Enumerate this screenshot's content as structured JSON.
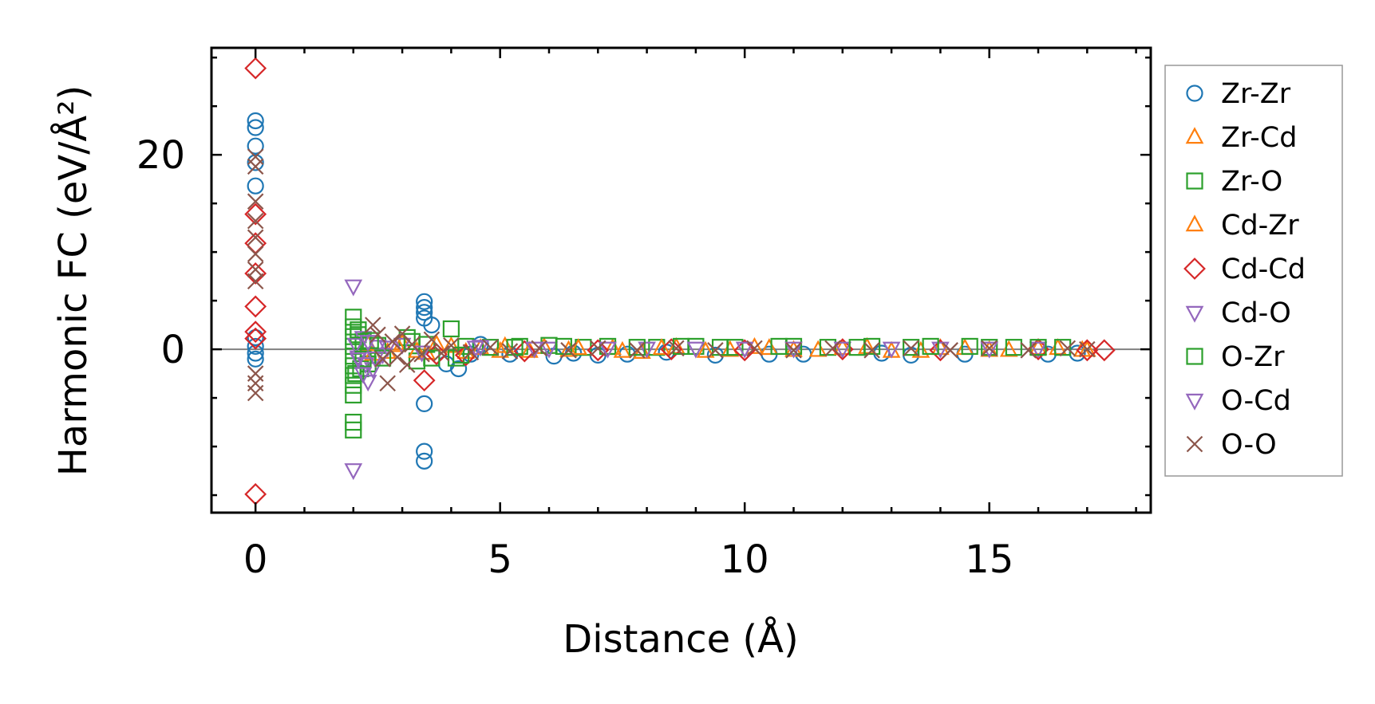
{
  "chart_data": {
    "type": "scatter",
    "title": "",
    "xlabel": "Distance (Å)",
    "ylabel": "Harmonic FC (eV/Å²)",
    "xlim": [
      -0.9,
      18.3
    ],
    "ylim": [
      -16.8,
      31
    ],
    "xticks": [
      0,
      5,
      10,
      15
    ],
    "yticks": [
      0,
      20
    ],
    "legend_position": "outside-right",
    "grid": false,
    "zero_line": true,
    "series": [
      {
        "name": "Zr-Zr",
        "marker": "circle",
        "color": "#1f77b4",
        "points": [
          [
            0,
            23.5
          ],
          [
            0,
            22.8
          ],
          [
            0,
            20.9
          ],
          [
            0,
            19.2
          ],
          [
            0,
            16.8
          ],
          [
            0,
            1.2
          ],
          [
            0,
            0.3
          ],
          [
            0,
            -0.4
          ],
          [
            0,
            -1.0
          ],
          [
            3.45,
            4.9
          ],
          [
            3.45,
            4.3
          ],
          [
            3.45,
            3.8
          ],
          [
            3.45,
            3.2
          ],
          [
            3.45,
            -5.6
          ],
          [
            3.45,
            -10.5
          ],
          [
            3.45,
            -11.5
          ],
          [
            3.6,
            2.5
          ],
          [
            3.9,
            -1.5
          ],
          [
            4.15,
            -2.0
          ],
          [
            4.4,
            -0.5
          ],
          [
            4.6,
            0.5
          ],
          [
            5.2,
            -0.5
          ],
          [
            6.1,
            -0.7
          ],
          [
            6.5,
            -0.4
          ],
          [
            7.0,
            -0.6
          ],
          [
            7.6,
            -0.5
          ],
          [
            8.4,
            -0.3
          ],
          [
            9.4,
            -0.6
          ],
          [
            10.5,
            -0.5
          ],
          [
            11.2,
            -0.5
          ],
          [
            12.8,
            -0.4
          ],
          [
            13.4,
            -0.6
          ],
          [
            14.5,
            -0.5
          ],
          [
            16.2,
            -0.5
          ],
          [
            16.8,
            -0.4
          ]
        ]
      },
      {
        "name": "Zr-Cd",
        "marker": "triangle-up",
        "color": "#ff7f0e",
        "points": [
          [
            2.3,
            0.5
          ],
          [
            2.7,
            -0.3
          ],
          [
            3.0,
            0.6
          ],
          [
            3.5,
            -0.4
          ],
          [
            4.0,
            0.3
          ],
          [
            4.6,
            0.1
          ],
          [
            5.0,
            -0.2
          ],
          [
            5.9,
            0.2
          ],
          [
            6.4,
            -0.1
          ],
          [
            7.3,
            0.1
          ],
          [
            7.9,
            -0.3
          ],
          [
            8.6,
            0.2
          ],
          [
            9.7,
            -0.1
          ],
          [
            10.5,
            0.1
          ],
          [
            11.5,
            -0.1
          ],
          [
            12.5,
            0.2
          ],
          [
            13.6,
            -0.2
          ],
          [
            14.5,
            0.1
          ],
          [
            15.4,
            -0.1
          ],
          [
            16.4,
            0.1
          ],
          [
            17.0,
            -0.1
          ]
        ]
      },
      {
        "name": "Zr-O",
        "marker": "square",
        "color": "#2ca02c",
        "points": [
          [
            2.0,
            3.3
          ],
          [
            2.0,
            2.3
          ],
          [
            2.0,
            1.3
          ],
          [
            2.0,
            0.3
          ],
          [
            2.0,
            -0.7
          ],
          [
            2.0,
            -1.7
          ],
          [
            2.0,
            -2.7
          ],
          [
            2.0,
            -3.7
          ],
          [
            2.0,
            -4.7
          ],
          [
            2.0,
            -7.5
          ],
          [
            2.0,
            -8.3
          ],
          [
            2.1,
            1.5
          ],
          [
            2.15,
            -2.0
          ],
          [
            2.2,
            0.8
          ],
          [
            2.3,
            -1.5
          ],
          [
            2.5,
            0.4
          ],
          [
            3.1,
            1.2
          ],
          [
            3.3,
            -1.2
          ],
          [
            3.5,
            0.5
          ],
          [
            4.0,
            2.1
          ],
          [
            4.1,
            -0.9
          ],
          [
            4.3,
            0.3
          ],
          [
            4.8,
            0.2
          ],
          [
            5.4,
            0.3
          ],
          [
            6.0,
            0.4
          ],
          [
            6.7,
            0.2
          ],
          [
            7.2,
            0.3
          ],
          [
            8.2,
            0.2
          ],
          [
            9.0,
            0.3
          ],
          [
            9.8,
            0.2
          ],
          [
            10.7,
            0.3
          ],
          [
            11.7,
            0.2
          ],
          [
            12.6,
            0.3
          ],
          [
            13.4,
            0.2
          ],
          [
            14.6,
            0.3
          ],
          [
            15.5,
            0.2
          ],
          [
            16.5,
            0.2
          ]
        ]
      },
      {
        "name": "Cd-Zr",
        "marker": "triangle-up",
        "color": "#ff7f0e",
        "points": [
          [
            2.4,
            -0.5
          ],
          [
            2.9,
            0.4
          ],
          [
            3.3,
            -0.2
          ],
          [
            3.7,
            0.5
          ],
          [
            4.3,
            -0.3
          ],
          [
            5.1,
            0.3
          ],
          [
            5.6,
            -0.2
          ],
          [
            6.6,
            0.1
          ],
          [
            7.5,
            -0.2
          ],
          [
            8.3,
            0.1
          ],
          [
            9.2,
            -0.2
          ],
          [
            10.2,
            0.2
          ],
          [
            11.0,
            -0.1
          ],
          [
            12.0,
            0.1
          ],
          [
            13.0,
            -0.2
          ],
          [
            14.0,
            0.1
          ],
          [
            15.0,
            -0.1
          ],
          [
            16.0,
            0.1
          ],
          [
            16.9,
            -0.1
          ]
        ]
      },
      {
        "name": "Cd-Cd",
        "marker": "diamond",
        "color": "#d62728",
        "points": [
          [
            0,
            28.9
          ],
          [
            0,
            13.9
          ],
          [
            0,
            10.9
          ],
          [
            0,
            7.8
          ],
          [
            0,
            4.4
          ],
          [
            0,
            1.8
          ],
          [
            0,
            1.1
          ],
          [
            0,
            -14.9
          ],
          [
            3.45,
            -3.2
          ],
          [
            3.7,
            -0.5
          ],
          [
            4.3,
            -0.6
          ],
          [
            5.5,
            -0.2
          ],
          [
            7.0,
            -0.1
          ],
          [
            8.5,
            0.0
          ],
          [
            10.0,
            -0.1
          ],
          [
            12.0,
            0.0
          ],
          [
            14.0,
            -0.1
          ],
          [
            16.0,
            0.0
          ],
          [
            17.0,
            -0.1
          ],
          [
            17.35,
            -0.1
          ]
        ]
      },
      {
        "name": "Cd-O",
        "marker": "triangle-down",
        "color": "#9467bd",
        "points": [
          [
            2.0,
            6.5
          ],
          [
            2.0,
            -12.4
          ],
          [
            2.05,
            0.5
          ],
          [
            2.1,
            -0.8
          ],
          [
            2.2,
            1.2
          ],
          [
            2.25,
            -1.5
          ],
          [
            2.3,
            -3.3
          ],
          [
            2.4,
            -2.0
          ],
          [
            2.5,
            0.3
          ],
          [
            2.6,
            -0.5
          ],
          [
            3.0,
            0.5
          ],
          [
            4.6,
            0.3
          ],
          [
            6.0,
            0.1
          ],
          [
            8.0,
            0.1
          ],
          [
            10.0,
            0.1
          ],
          [
            12.0,
            0.1
          ],
          [
            14.0,
            0.1
          ],
          [
            16.0,
            0.1
          ]
        ]
      },
      {
        "name": "O-Zr",
        "marker": "square",
        "color": "#2ca02c",
        "points": [
          [
            2.05,
            -2.5
          ],
          [
            2.1,
            2.0
          ],
          [
            2.2,
            -1.0
          ],
          [
            2.35,
            0.9
          ],
          [
            2.6,
            -0.9
          ],
          [
            3.2,
            0.8
          ],
          [
            3.6,
            -0.9
          ],
          [
            4.2,
            -0.6
          ],
          [
            5.3,
            0.2
          ],
          [
            6.3,
            0.3
          ],
          [
            7.8,
            0.2
          ],
          [
            8.7,
            0.3
          ],
          [
            9.5,
            0.2
          ],
          [
            11.0,
            0.3
          ],
          [
            12.3,
            0.2
          ],
          [
            13.8,
            0.3
          ],
          [
            15.0,
            0.2
          ],
          [
            16.0,
            0.2
          ]
        ]
      },
      {
        "name": "O-Cd",
        "marker": "triangle-down",
        "color": "#9467bd",
        "points": [
          [
            2.1,
            -1.0
          ],
          [
            2.2,
            -2.5
          ],
          [
            2.3,
            0.8
          ],
          [
            2.45,
            -0.9
          ],
          [
            2.7,
            0.2
          ],
          [
            3.4,
            -0.3
          ],
          [
            4.5,
            0.2
          ],
          [
            5.7,
            0.1
          ],
          [
            7.2,
            0.1
          ],
          [
            9.0,
            0.1
          ],
          [
            11.0,
            0.1
          ],
          [
            13.0,
            0.1
          ],
          [
            15.0,
            0.1
          ]
        ]
      },
      {
        "name": "O-O",
        "marker": "x",
        "color": "#8c564b",
        "points": [
          [
            0,
            19.8
          ],
          [
            0,
            18.8
          ],
          [
            0,
            15.2
          ],
          [
            0,
            13.2
          ],
          [
            0,
            11.5
          ],
          [
            0,
            9.8
          ],
          [
            0,
            8.2
          ],
          [
            0,
            7.0
          ],
          [
            0,
            -2.5
          ],
          [
            0,
            -3.5
          ],
          [
            0,
            -4.5
          ],
          [
            2.4,
            2.5
          ],
          [
            2.5,
            1.5
          ],
          [
            2.6,
            -1.0
          ],
          [
            2.7,
            -3.5
          ],
          [
            2.8,
            0.8
          ],
          [
            2.9,
            -0.8
          ],
          [
            3.0,
            1.6
          ],
          [
            3.1,
            -1.6
          ],
          [
            3.2,
            0.5
          ],
          [
            3.4,
            -0.5
          ],
          [
            3.6,
            1.0
          ],
          [
            3.8,
            -0.4
          ],
          [
            4.0,
            0.4
          ],
          [
            4.4,
            -0.3
          ],
          [
            4.8,
            0.2
          ],
          [
            5.2,
            -0.2
          ],
          [
            5.8,
            0.1
          ],
          [
            6.4,
            -0.1
          ],
          [
            7.0,
            0.1
          ],
          [
            7.8,
            -0.1
          ],
          [
            8.6,
            0.1
          ],
          [
            9.4,
            -0.1
          ],
          [
            10.2,
            0.1
          ],
          [
            11.0,
            -0.1
          ],
          [
            11.8,
            0.1
          ],
          [
            12.6,
            -0.1
          ],
          [
            13.4,
            0.1
          ],
          [
            14.2,
            -0.1
          ],
          [
            15.0,
            0.1
          ],
          [
            15.8,
            -0.1
          ],
          [
            16.6,
            0.1
          ],
          [
            17.0,
            0.0
          ]
        ]
      }
    ]
  }
}
